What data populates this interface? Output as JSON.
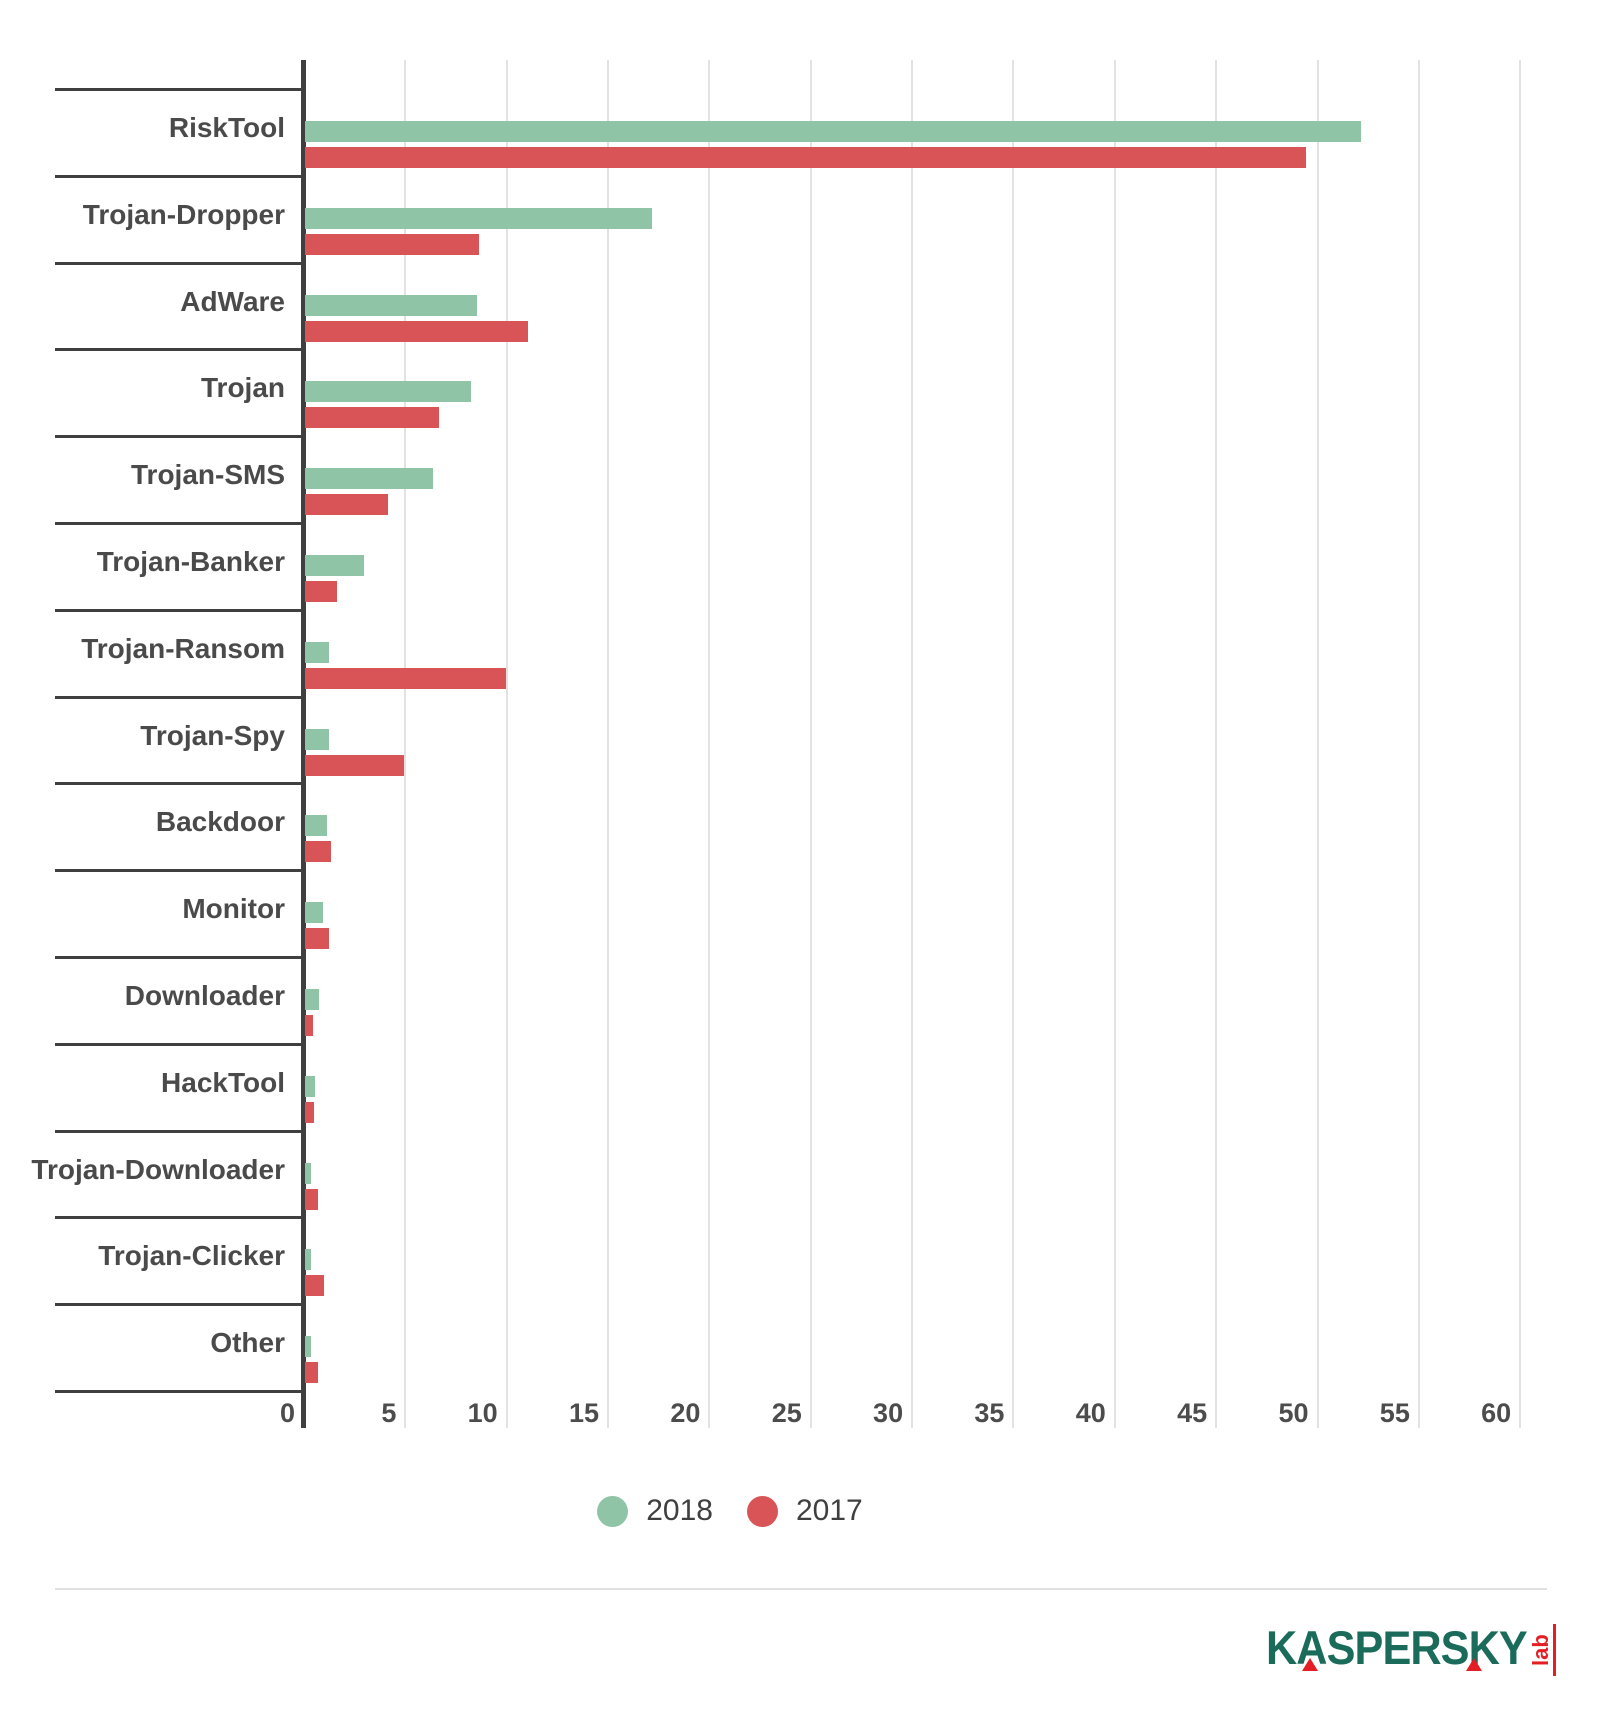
{
  "chart_data": {
    "type": "bar",
    "orientation": "horizontal",
    "title": "",
    "categories": [
      "RiskTool",
      "Trojan-Dropper",
      "AdWare",
      "Trojan",
      "Trojan-SMS",
      "Trojan-Banker",
      "Trojan-Ransom",
      "Trojan-Spy",
      "Backdoor",
      "Monitor",
      "Downloader",
      "HackTool",
      "Trojan-Downloader",
      "Trojan-Clicker",
      "Other"
    ],
    "series": [
      {
        "name": "2018",
        "color": "#8fc5a6",
        "values": [
          52.1,
          17.1,
          8.5,
          8.2,
          6.3,
          2.9,
          1.2,
          1.2,
          1.1,
          0.9,
          0.7,
          0.5,
          0.3,
          0.3,
          0.3
        ]
      },
      {
        "name": "2017",
        "color": "#d95457",
        "values": [
          49.4,
          8.6,
          11.0,
          6.6,
          4.1,
          1.6,
          9.9,
          4.9,
          1.3,
          1.2,
          0.4,
          0.45,
          0.65,
          0.95,
          0.65
        ]
      }
    ],
    "xlim": [
      0,
      60
    ],
    "xticks": [
      0,
      5,
      10,
      15,
      20,
      25,
      30,
      35,
      40,
      45,
      50,
      55,
      60
    ],
    "grid": true,
    "legend": {
      "position": "bottom",
      "items": [
        {
          "label": "2018",
          "color": "#8fc5a6"
        },
        {
          "label": "2017",
          "color": "#d95457"
        }
      ]
    }
  },
  "colors": {
    "axis": "#3f3f3f",
    "gridline": "#e2e2e2",
    "text": "#4a4a4a",
    "series_2018": "#8fc5a6",
    "series_2017": "#d95457",
    "logo_green": "#1b6b5a",
    "logo_red": "#e31e24"
  },
  "footer": {
    "brand": "KASPERSKY",
    "brand_sub": "lab"
  }
}
